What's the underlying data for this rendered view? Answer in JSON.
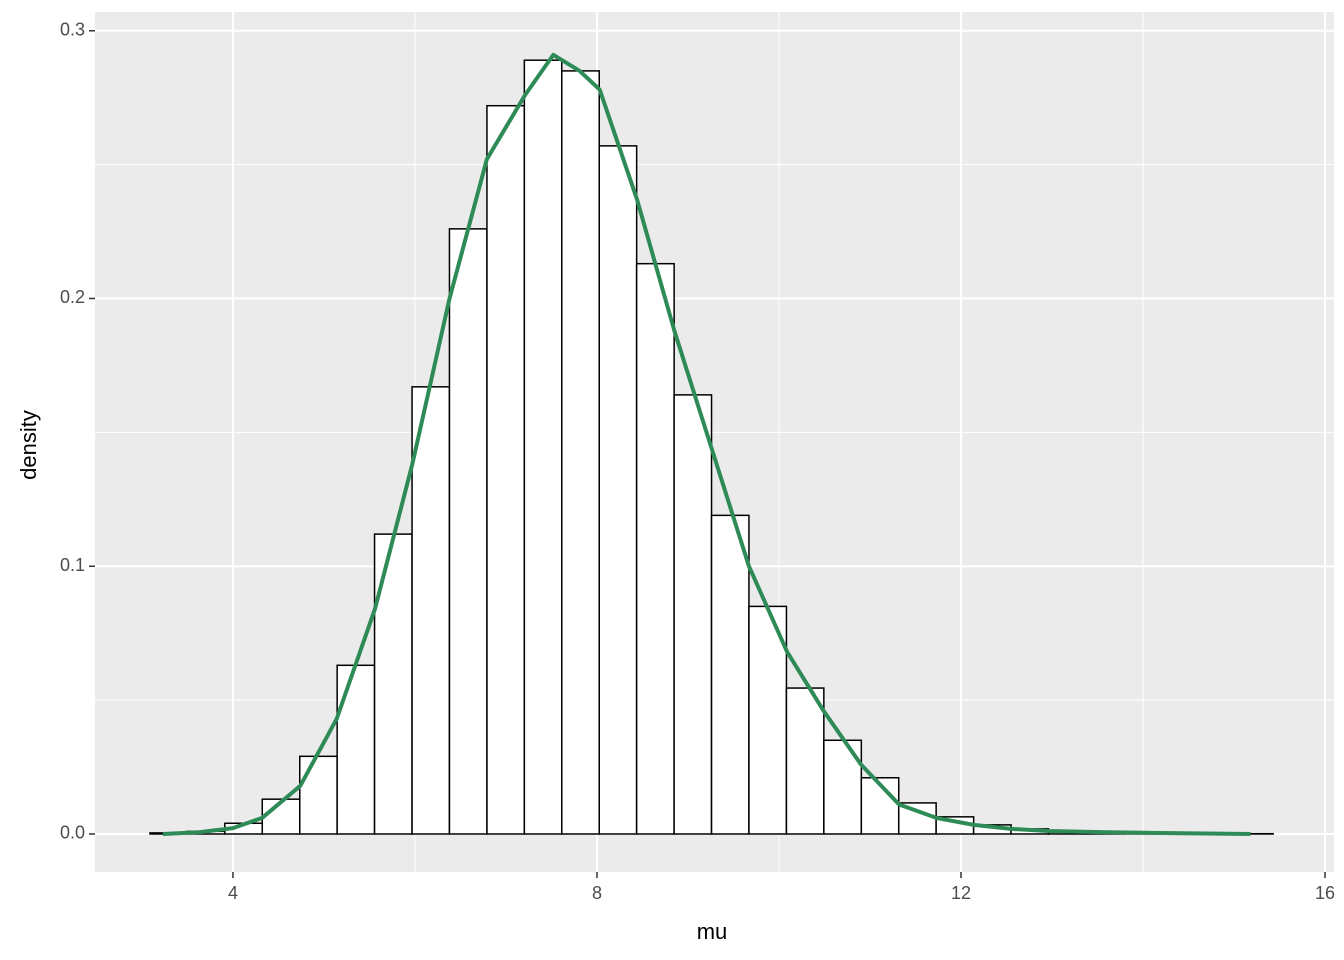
{
  "chart_data": {
    "type": "histogram",
    "x_label": "mu",
    "y_label": "density",
    "bins": [
      3.088,
      3.499,
      3.911,
      4.322,
      4.734,
      5.145,
      5.556,
      5.968,
      6.379,
      6.791,
      7.202,
      7.613,
      8.025,
      8.436,
      8.848,
      9.259,
      9.67,
      10.082,
      10.493,
      10.905,
      11.316,
      11.727,
      12.139,
      12.55,
      12.962,
      13.373,
      13.784,
      14.196,
      14.607,
      15.019,
      15.43
    ],
    "values": [
      0.0004,
      0.001,
      0.004,
      0.013,
      0.029,
      0.063,
      0.112,
      0.167,
      0.226,
      0.272,
      0.289,
      0.285,
      0.257,
      0.213,
      0.164,
      0.119,
      0.085,
      0.0545,
      0.035,
      0.021,
      0.0116,
      0.0064,
      0.0034,
      0.0019,
      0.0008,
      0.0004,
      0.0002,
      0.0001,
      0.0001,
      0.0001
    ],
    "bar_fill": "#ffffff",
    "bar_stroke": "#000000",
    "density": {
      "color": "#2e8b57",
      "x": [
        3.23,
        3.64,
        4.0,
        4.32,
        4.74,
        5.14,
        5.56,
        5.97,
        6.38,
        6.79,
        7.21,
        7.52,
        7.81,
        8.03,
        8.44,
        8.85,
        9.26,
        9.67,
        10.09,
        10.49,
        10.9,
        11.32,
        11.73,
        12.14,
        12.55,
        12.96,
        13.53,
        14.08,
        15.18
      ],
      "values": [
        0.0,
        0.0007,
        0.0022,
        0.006,
        0.018,
        0.043,
        0.084,
        0.138,
        0.2,
        0.252,
        0.276,
        0.291,
        0.285,
        0.278,
        0.237,
        0.188,
        0.144,
        0.1,
        0.068,
        0.046,
        0.026,
        0.011,
        0.006,
        0.0034,
        0.0019,
        0.0011,
        0.0007,
        0.0004,
        0.0
      ]
    },
    "xlim": [
      2.484,
      16.099
    ],
    "ylim": [
      -0.0142,
      0.307
    ],
    "xticks": [
      4,
      8,
      12,
      16
    ],
    "yticks": [
      {
        "value": 0,
        "label": "0.0"
      },
      0.1,
      0.2,
      0.3
    ],
    "minor_xticks": [
      6,
      10,
      14
    ],
    "minor_yticks": [
      0.05,
      0.15,
      0.25
    ],
    "grid": true
  }
}
